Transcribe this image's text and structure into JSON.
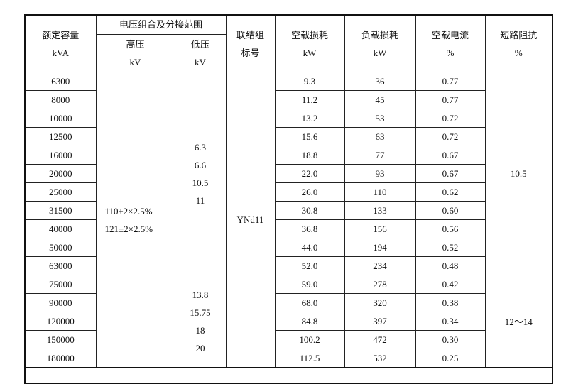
{
  "header": {
    "capacity": [
      "额定容量",
      "kVA"
    ],
    "voltage_group": "电压组合及分接范围",
    "hv": [
      "高压",
      "kV"
    ],
    "lv": [
      "低压",
      "kV"
    ],
    "vector_group": [
      "联结组",
      "标号"
    ],
    "no_load_loss": [
      "空载损耗",
      "kW"
    ],
    "load_loss": [
      "负载损耗",
      "kW"
    ],
    "no_load_current": [
      "空载电流",
      "%"
    ],
    "impedance": [
      "短路阻抗",
      "%"
    ]
  },
  "hv_values": [
    "110±2×2.5%",
    "121±2×2.5%"
  ],
  "lv_group_1": [
    "6.3",
    "6.6",
    "10.5",
    "11"
  ],
  "lv_group_2": [
    "13.8",
    "15.75",
    "18",
    "20"
  ],
  "vector_group": "YNd11",
  "impedance_1": "10.5",
  "impedance_2": "12～14",
  "rows": [
    [
      "6300",
      "9.3",
      "36",
      "0.77"
    ],
    [
      "8000",
      "11.2",
      "45",
      "0.77"
    ],
    [
      "10000",
      "13.2",
      "53",
      "0.72"
    ],
    [
      "12500",
      "15.6",
      "63",
      "0.72"
    ],
    [
      "16000",
      "18.8",
      "77",
      "0.67"
    ],
    [
      "20000",
      "22.0",
      "93",
      "0.67"
    ],
    [
      "25000",
      "26.0",
      "110",
      "0.62"
    ],
    [
      "31500",
      "30.8",
      "133",
      "0.60"
    ],
    [
      "40000",
      "36.8",
      "156",
      "0.56"
    ],
    [
      "50000",
      "44.0",
      "194",
      "0.52"
    ],
    [
      "63000",
      "52.0",
      "234",
      "0.48"
    ],
    [
      "75000",
      "59.0",
      "278",
      "0.42"
    ],
    [
      "90000",
      "68.0",
      "320",
      "0.38"
    ],
    [
      "120000",
      "84.8",
      "397",
      "0.34"
    ],
    [
      "150000",
      "100.2",
      "472",
      "0.30"
    ],
    [
      "180000",
      "112.5",
      "532",
      "0.25"
    ]
  ]
}
